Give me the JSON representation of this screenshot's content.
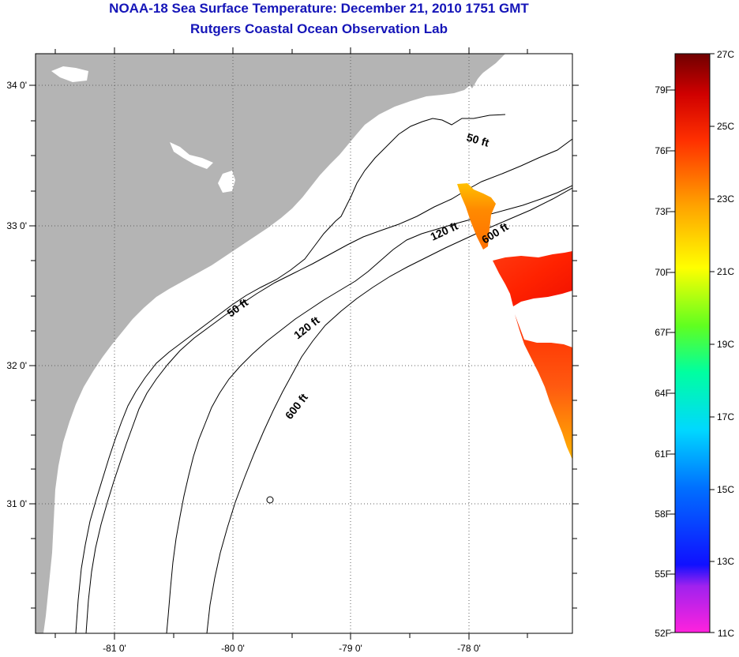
{
  "title_line1": "NOAA-18 Sea Surface Temperature:  December 21, 2010 1751 GMT",
  "title_line2": "Rutgers Coastal Ocean Observation Lab",
  "map": {
    "lon_ticks": [
      "-81 0'",
      "-80 0'",
      "-79 0'",
      "-78 0'"
    ],
    "lat_ticks": [
      "34 0'",
      "33 0'",
      "32 0'",
      "31 0'"
    ],
    "land_color": "#b4b4b4",
    "ocean_color": "#ffffff",
    "isobath_labels": [
      {
        "id": "inner-50",
        "text": "50 ft"
      },
      {
        "id": "outer-50",
        "text": "50 ft"
      },
      {
        "id": "inner-120",
        "text": "120 ft"
      },
      {
        "id": "outer-120",
        "text": "120 ft"
      },
      {
        "id": "inner-600",
        "text": "600 ft"
      },
      {
        "id": "outer-600",
        "text": "600 ft"
      }
    ]
  },
  "colorbar": {
    "f_labels": [
      "79F",
      "76F",
      "73F",
      "70F",
      "67F",
      "64F",
      "61F",
      "58F",
      "55F",
      "52F"
    ],
    "c_labels": [
      "27C",
      "25C",
      "23C",
      "21C",
      "19C",
      "17C",
      "15C",
      "13C",
      "11C"
    ],
    "colors": [
      "#ff22dd",
      "#8a22ee",
      "#0000ff",
      "#0088ff",
      "#00e0ff",
      "#00ff90",
      "#88ff00",
      "#ffff00",
      "#ff9900",
      "#ff2200",
      "#c00000",
      "#7a0000"
    ]
  }
}
